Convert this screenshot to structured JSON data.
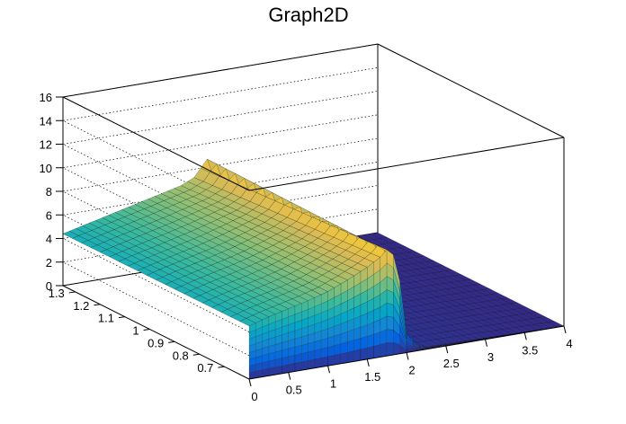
{
  "chart_data": {
    "type": "surface",
    "title": "Graph2D",
    "xlabel": "",
    "ylabel": "",
    "zlabel": "",
    "xlim": [
      0,
      4
    ],
    "ylim": [
      0.6,
      1.35
    ],
    "zlim": [
      0,
      16
    ],
    "x_ticks": [
      "0",
      "0.5",
      "1",
      "1.5",
      "2",
      "2.5",
      "3",
      "3.5",
      "4"
    ],
    "y_ticks": [
      "0.7",
      "0.8",
      "0.9",
      "1",
      "1.1",
      "1.2",
      "1.3"
    ],
    "z_ticks": [
      "0",
      "2",
      "4",
      "6",
      "8",
      "10",
      "12",
      "14",
      "16"
    ],
    "grid": true,
    "colormap": "viridis-like",
    "colors": [
      "#352a87",
      "#0363e1",
      "#1485d4",
      "#06a7c6",
      "#38b99e",
      "#92bf73",
      "#d9ba56",
      "#fcce2e",
      "#f9fb0e"
    ],
    "surface_profile": {
      "x": [
        0.0,
        0.25,
        0.5,
        0.75,
        1.0,
        1.25,
        1.5,
        1.6,
        1.7,
        1.75,
        1.8,
        1.9,
        2.0,
        2.2,
        4.0
      ],
      "z_front": [
        4.5,
        5.0,
        5.4,
        5.8,
        6.3,
        7.0,
        7.8,
        8.2,
        8.6,
        9.0,
        9.2,
        7.0,
        1.5,
        0.2,
        0.0
      ],
      "z_back": [
        4.4,
        4.8,
        5.2,
        5.6,
        6.0,
        6.4,
        6.8,
        7.1,
        7.4,
        8.0,
        9.0,
        8.0,
        2.0,
        0.2,
        0.0
      ]
    }
  }
}
